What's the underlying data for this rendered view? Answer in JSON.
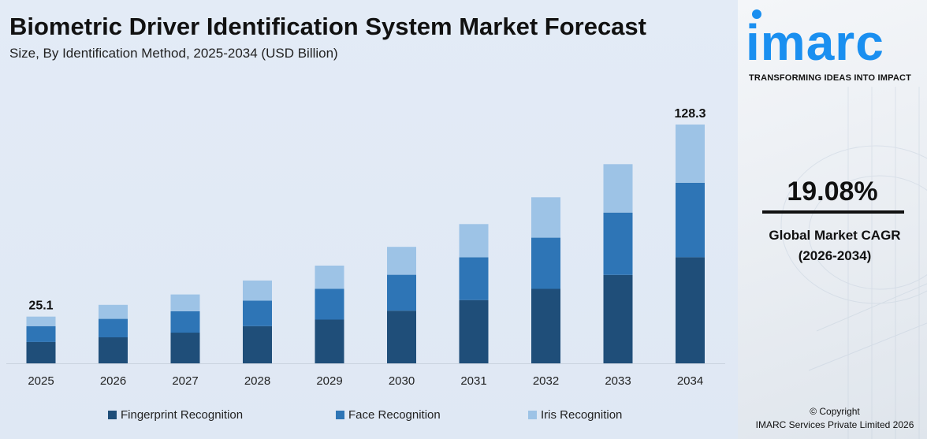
{
  "header": {
    "title": "Biometric Driver Identification System Market Forecast",
    "subtitle": "Size, By Identification Method, 2025-2034 (USD Billion)"
  },
  "brand": {
    "logo_text": "imarc",
    "tagline": "TRANSFORMING IDEAS INTO IMPACT",
    "accent_color": "#1a8ff0"
  },
  "cagr": {
    "value": "19.08%",
    "label_line1": "Global Market CAGR",
    "label_line2": "(2026-2034)"
  },
  "footer": {
    "copyright_line1": "© Copyright",
    "copyright_line2": "IMARC Services Private Limited 2026"
  },
  "chart_data": {
    "type": "bar",
    "stacked": true,
    "title": "Biometric Driver Identification System Market Forecast",
    "subtitle": "Size, By Identification Method, 2025-2034 (USD Billion)",
    "xlabel": "",
    "ylabel": "",
    "ylim": [
      0,
      135
    ],
    "grid": false,
    "legend_position": "bottom",
    "categories": [
      "2025",
      "2026",
      "2027",
      "2028",
      "2029",
      "2030",
      "2031",
      "2032",
      "2033",
      "2034"
    ],
    "series": [
      {
        "name": "Fingerprint Recognition",
        "color": "#1f4e79",
        "values": [
          11.5,
          14.0,
          16.5,
          20.0,
          23.5,
          28.3,
          34.0,
          40.0,
          47.5,
          57.0
        ]
      },
      {
        "name": "Face Recognition",
        "color": "#2e75b6",
        "values": [
          8.5,
          9.9,
          11.5,
          13.7,
          16.5,
          19.3,
          23.0,
          27.5,
          33.5,
          40.0
        ]
      },
      {
        "name": "Iris Recognition",
        "color": "#9dc3e6",
        "values": [
          5.1,
          7.5,
          9.0,
          10.8,
          12.5,
          15.0,
          17.8,
          21.7,
          26.0,
          31.3
        ]
      }
    ],
    "data_labels": [
      {
        "category": "2025",
        "text": "25.1"
      },
      {
        "category": "2034",
        "text": "128.3"
      }
    ]
  }
}
